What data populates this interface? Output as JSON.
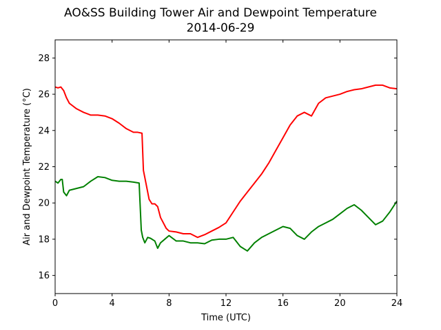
{
  "chart_data": {
    "type": "line",
    "title": "AO&SS Building Tower Air and Dewpoint Temperature",
    "subtitle": "2014-06-29",
    "xlabel": "Time (UTC)",
    "ylabel": "Air and Dewpoint Temperature (°C)",
    "xlim": [
      0,
      24
    ],
    "ylim": [
      15,
      29
    ],
    "xticks": [
      0,
      4,
      8,
      12,
      16,
      20,
      24
    ],
    "yticks": [
      16,
      18,
      20,
      22,
      24,
      26,
      28
    ],
    "grid": false,
    "legend": "none",
    "series": [
      {
        "color": "#ff0000",
        "x": [
          0,
          0.2,
          0.4,
          0.6,
          0.8,
          1.0,
          1.5,
          2.0,
          2.5,
          3.0,
          3.5,
          4.0,
          4.5,
          5.0,
          5.5,
          5.8,
          6.1,
          6.2,
          6.4,
          6.6,
          6.8,
          7.0,
          7.2,
          7.4,
          7.6,
          7.8,
          8.0,
          8.5,
          9.0,
          9.5,
          10.0,
          10.5,
          11.0,
          11.5,
          12.0,
          12.5,
          13.0,
          13.5,
          14.0,
          14.5,
          15.0,
          15.5,
          16.0,
          16.5,
          17.0,
          17.5,
          18.0,
          18.5,
          19.0,
          19.5,
          20.0,
          20.5,
          21.0,
          21.5,
          22.0,
          22.5,
          23.0,
          23.5,
          24.0
        ],
        "y": [
          26.4,
          26.35,
          26.4,
          26.2,
          25.8,
          25.5,
          25.2,
          25.0,
          24.85,
          24.85,
          24.8,
          24.65,
          24.4,
          24.1,
          23.9,
          23.9,
          23.85,
          21.8,
          21.0,
          20.2,
          19.95,
          19.95,
          19.8,
          19.2,
          18.9,
          18.6,
          18.45,
          18.4,
          18.3,
          18.3,
          18.1,
          18.25,
          18.45,
          18.65,
          18.9,
          19.5,
          20.1,
          20.6,
          21.1,
          21.6,
          22.2,
          22.9,
          23.6,
          24.3,
          24.8,
          25.0,
          24.8,
          25.5,
          25.8,
          25.9,
          26.0,
          26.15,
          26.25,
          26.3,
          26.4,
          26.5,
          26.5,
          26.35,
          26.3
        ]
      },
      {
        "color": "#008000",
        "x": [
          0,
          0.2,
          0.4,
          0.5,
          0.6,
          0.8,
          1.0,
          1.5,
          2.0,
          2.5,
          3.0,
          3.5,
          4.0,
          4.5,
          5.0,
          5.5,
          5.9,
          6.05,
          6.15,
          6.3,
          6.5,
          6.7,
          7.0,
          7.2,
          7.4,
          7.7,
          8.0,
          8.5,
          9.0,
          9.5,
          10.0,
          10.5,
          11.0,
          11.5,
          12.0,
          12.5,
          13.0,
          13.5,
          14.0,
          14.5,
          15.0,
          15.5,
          16.0,
          16.5,
          17.0,
          17.5,
          18.0,
          18.5,
          19.0,
          19.5,
          20.0,
          20.5,
          21.0,
          21.5,
          22.0,
          22.5,
          23.0,
          23.5,
          24.0
        ],
        "y": [
          21.2,
          21.1,
          21.3,
          21.3,
          20.6,
          20.4,
          20.7,
          20.8,
          20.9,
          21.2,
          21.45,
          21.4,
          21.25,
          21.2,
          21.2,
          21.15,
          21.1,
          18.5,
          18.1,
          17.8,
          18.1,
          18.05,
          17.9,
          17.5,
          17.8,
          18.0,
          18.2,
          17.9,
          17.9,
          17.8,
          17.8,
          17.75,
          17.95,
          18.0,
          18.0,
          18.1,
          17.6,
          17.35,
          17.8,
          18.1,
          18.3,
          18.5,
          18.7,
          18.6,
          18.2,
          18.0,
          18.4,
          18.7,
          18.9,
          19.1,
          19.4,
          19.7,
          19.9,
          19.6,
          19.2,
          18.8,
          19.0,
          19.5,
          20.1
        ]
      }
    ]
  }
}
